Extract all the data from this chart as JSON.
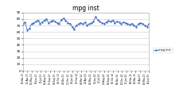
{
  "title": "mpg inst",
  "legend_label": "mpg inst",
  "ylim": [
    0,
    90
  ],
  "yticks": [
    0,
    10,
    20,
    30,
    40,
    50,
    60,
    70,
    80,
    90
  ],
  "line_color": "#4472C4",
  "marker": "o",
  "markersize": 0.8,
  "linewidth": 0.6,
  "background_color": "#ffffff",
  "plot_bg_color": "#ffffff",
  "x_labels": [
    "15-Mar-13",
    "13-Apr-13",
    "11-May-13",
    "06-Jun-13",
    "05-Jul-13",
    "04-Aug-13",
    "01-Sep-13",
    "30-Sep-13",
    "28-Oct-13",
    "26-Nov-13",
    "31-Dec-13",
    "29-Jan-14",
    "27-Feb-14",
    "28-Mar-14",
    "26-Apr-14",
    "25-May-14",
    "23-Jun-14",
    "22-Jul-14",
    "20-Aug-14",
    "18-Sep-14",
    "16-Oct-14",
    "14-Nov-14",
    "13-Dec-14",
    "11-Jan-15",
    "08-Feb-15",
    "09-Mar-15",
    "07-Apr-15",
    "06-May-15",
    "04-Jun-15"
  ],
  "y_values": [
    73,
    75,
    63,
    65,
    72,
    74,
    76,
    78,
    73,
    75,
    78,
    80,
    74,
    76,
    78,
    76,
    74,
    73,
    79,
    81,
    78,
    74,
    73,
    68,
    64,
    70,
    72,
    74,
    72,
    75,
    70,
    72,
    74,
    76,
    83,
    79,
    76,
    74,
    73,
    75,
    77,
    76,
    78,
    74,
    76,
    75,
    73,
    75,
    74,
    72,
    71,
    73,
    70,
    68,
    72,
    74,
    73,
    70,
    68,
    72
  ],
  "title_fontsize": 5.5,
  "ytick_fontsize": 3.0,
  "xtick_fontsize": 2.0,
  "legend_fontsize": 2.5
}
